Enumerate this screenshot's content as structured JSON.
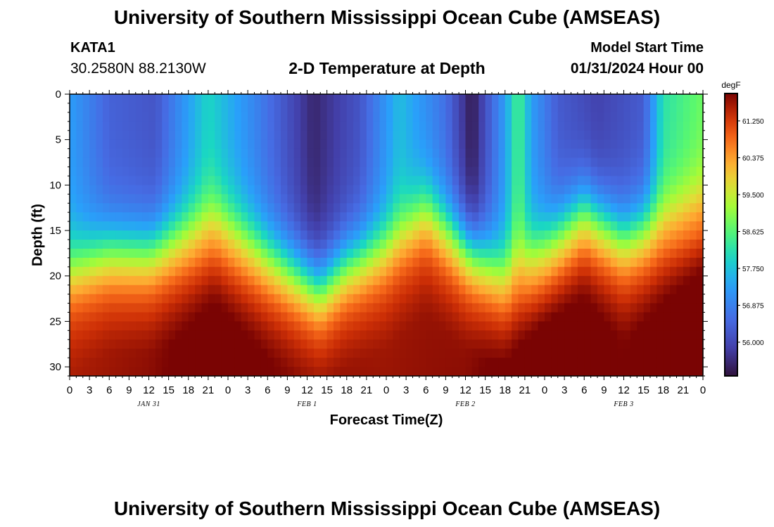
{
  "page": {
    "title_top": "University of Southern Mississippi Ocean Cube (AMSEAS)",
    "title_bottom": "University of Southern Mississippi Ocean Cube (AMSEAS)",
    "station": "KATA1",
    "coordinates": "30.2580N  88.2130W",
    "subtitle": "2-D Temperature at Depth",
    "model_start_label": "Model Start Time",
    "model_start_value": "01/31/2024 Hour 00"
  },
  "chart_data": {
    "type": "heatmap",
    "title": "2-D Temperature at Depth",
    "xlabel": "Forecast Time(Z)",
    "ylabel": "Depth (ft)",
    "x_unit": "forecast hour",
    "xlim": [
      0,
      96
    ],
    "ylim": [
      31,
      0
    ],
    "x_ticks": [
      0,
      3,
      6,
      9,
      12,
      15,
      18,
      21,
      24,
      27,
      30,
      33,
      36,
      39,
      42,
      45,
      48,
      51,
      54,
      57,
      60,
      63,
      66,
      69,
      72,
      75,
      78,
      81,
      84,
      87,
      90,
      93,
      96
    ],
    "x_tick_labels": [
      "0",
      "3",
      "6",
      "9",
      "12",
      "15",
      "18",
      "21",
      "0",
      "3",
      "6",
      "9",
      "12",
      "15",
      "18",
      "21",
      "0",
      "3",
      "6",
      "9",
      "12",
      "15",
      "18",
      "21",
      "0",
      "3",
      "6",
      "9",
      "12",
      "15",
      "18",
      "21",
      "0"
    ],
    "y_ticks": [
      0,
      5,
      10,
      15,
      20,
      25,
      30
    ],
    "y_tick_labels": [
      "0",
      "5",
      "10",
      "15",
      "20",
      "25",
      "30"
    ],
    "date_labels": [
      {
        "hour": 12,
        "label": "JAN 31"
      },
      {
        "hour": 36,
        "label": "FEB 1"
      },
      {
        "hour": 60,
        "label": "FEB 2"
      },
      {
        "hour": 84,
        "label": "FEB 3"
      }
    ],
    "colorbar": {
      "unit": "degF",
      "min": 55.2,
      "max": 61.9,
      "ticks": [
        61.25,
        60.375,
        59.5,
        58.625,
        57.75,
        56.875,
        56.0
      ],
      "tick_labels": [
        "61.250",
        "60.375",
        "59.500",
        "58.625",
        "57.750",
        "56.875",
        "56.000"
      ]
    },
    "depth_levels_ft": [
      0,
      1,
      2,
      3,
      4,
      5,
      6,
      7,
      8,
      9,
      10,
      11,
      12,
      13,
      14,
      15,
      16,
      17,
      18,
      19,
      20,
      21,
      22,
      23,
      24,
      25,
      26,
      27,
      28,
      29,
      30,
      31
    ],
    "thermocline_depth_ft": {
      "hours": [
        0,
        6,
        12,
        18,
        22,
        30,
        38,
        42,
        48,
        54,
        60,
        66,
        72,
        78,
        84,
        90,
        96
      ],
      "values": [
        19.5,
        17.5,
        17.5,
        15.5,
        14,
        18,
        21.5,
        19,
        17,
        13,
        17,
        20,
        17,
        13,
        16,
        14,
        12
      ]
    },
    "surface_temperature_degF": {
      "hours": [
        0,
        6,
        13,
        21,
        27,
        37,
        44,
        50,
        57,
        61,
        66,
        68,
        70,
        74,
        80,
        87,
        90,
        96
      ],
      "values": [
        57.3,
        56.4,
        56.2,
        58.0,
        57.1,
        55.5,
        56.2,
        57.7,
        56.6,
        55.3,
        57.3,
        58.6,
        57.3,
        56.3,
        55.9,
        56.3,
        58.2,
        58.8
      ]
    },
    "bottom_temperature_degF": 61.4,
    "hot_core": {
      "hours": [
        0,
        12,
        22,
        35,
        48,
        60,
        72,
        84,
        96
      ],
      "values": [
        61.6,
        61.8,
        62.2,
        61.8,
        61.7,
        61.8,
        62.4,
        61.9,
        62.5
      ]
    }
  }
}
